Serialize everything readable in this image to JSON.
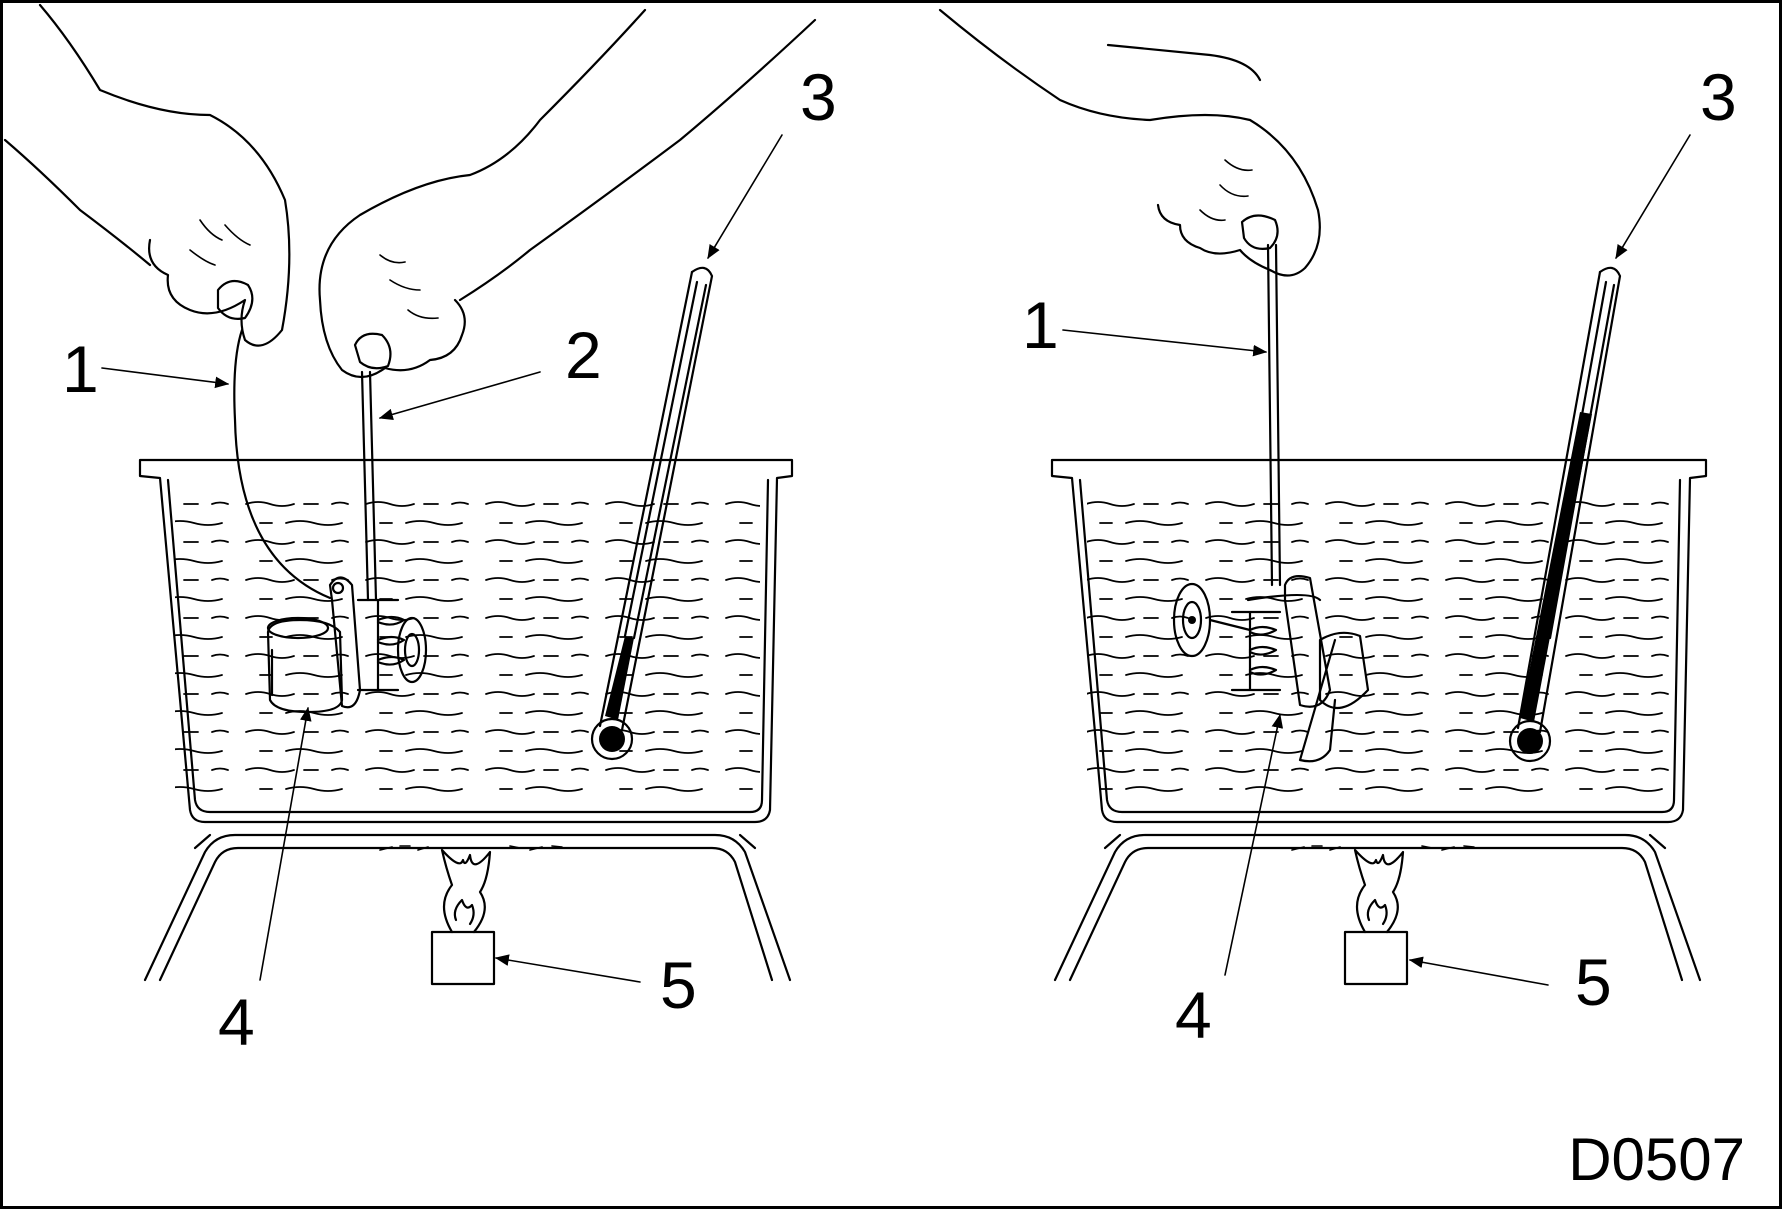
{
  "figure_code": "D0507",
  "left_panel": {
    "labels": [
      "1",
      "2",
      "3",
      "4",
      "5"
    ]
  },
  "right_panel": {
    "labels": [
      "1",
      "3",
      "4",
      "5"
    ]
  }
}
